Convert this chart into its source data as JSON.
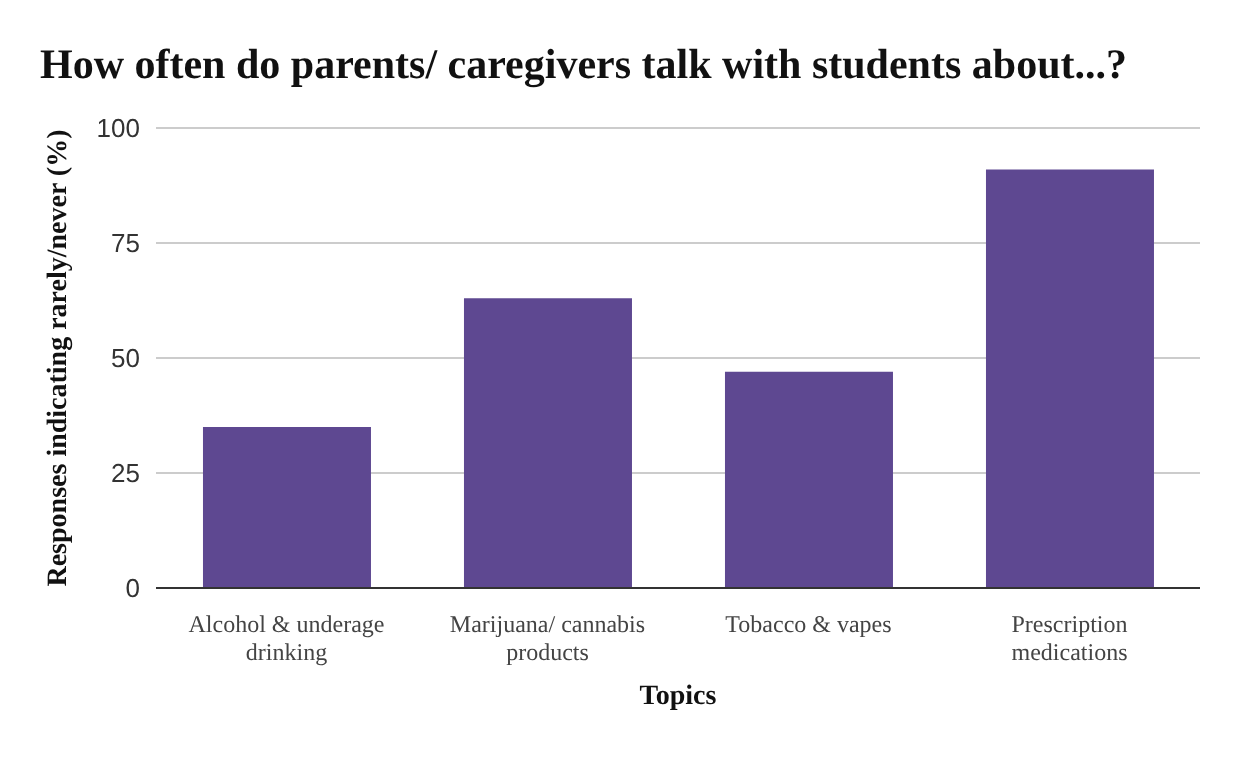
{
  "chart_data": {
    "type": "bar",
    "title": "How often do parents/ caregivers talk with students about...?",
    "xlabel": "Topics",
    "ylabel": "Responses indicating rarely/never (%)",
    "categories": [
      "Alcohol & underage drinking",
      "Marijuana/ cannabis products",
      "Tobacco & vapes",
      "Prescription medications"
    ],
    "values": [
      35,
      63,
      47,
      91
    ],
    "color": "#5e4891",
    "ylim": [
      0,
      100
    ],
    "yticks": [
      0,
      25,
      50,
      75,
      100
    ],
    "grid": "y"
  }
}
